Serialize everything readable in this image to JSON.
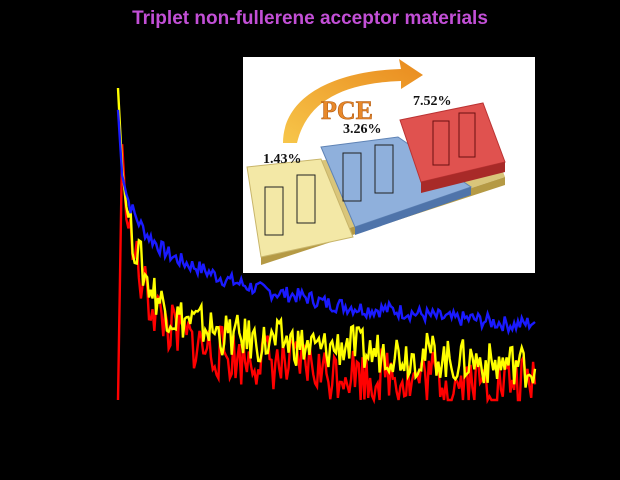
{
  "title": "Triplet non-fullerene acceptor materials",
  "chart_data": {
    "type": "line",
    "title": "Triplet non-fullerene acceptor materials",
    "xlabel": "",
    "ylabel": "",
    "xlim": [
      0,
      100
    ],
    "ylim": [
      0,
      1
    ],
    "grid": false,
    "x": [
      0,
      1,
      2,
      3,
      5,
      7,
      10,
      13,
      16,
      20,
      25,
      30,
      35,
      40,
      45,
      50,
      55,
      60,
      65,
      70,
      75,
      80,
      85,
      90,
      95,
      100
    ],
    "series": [
      {
        "name": "blue",
        "color": "#1a1aff",
        "values": [
          0.93,
          0.72,
          0.66,
          0.62,
          0.57,
          0.53,
          0.49,
          0.46,
          0.44,
          0.42,
          0.39,
          0.37,
          0.35,
          0.34,
          0.33,
          0.31,
          0.3,
          0.29,
          0.29,
          0.28,
          0.27,
          0.26,
          0.26,
          0.25,
          0.24,
          0.25
        ]
      },
      {
        "name": "yellow",
        "color": "#ffff00",
        "values": [
          1.0,
          0.74,
          0.62,
          0.55,
          0.46,
          0.38,
          0.32,
          0.27,
          0.26,
          0.24,
          0.21,
          0.2,
          0.18,
          0.19,
          0.17,
          0.16,
          0.18,
          0.15,
          0.16,
          0.14,
          0.15,
          0.12,
          0.13,
          0.11,
          0.12,
          0.1
        ]
      },
      {
        "name": "red",
        "color": "#ff0000",
        "values": [
          0.0,
          0.82,
          0.58,
          0.52,
          0.4,
          0.33,
          0.27,
          0.22,
          0.2,
          0.17,
          0.15,
          0.13,
          0.14,
          0.1,
          0.12,
          0.08,
          0.1,
          0.07,
          0.09,
          0.06,
          0.08,
          0.05,
          0.07,
          0.04,
          0.06,
          0.05
        ]
      }
    ]
  },
  "inset": {
    "arrow_label": "PCE",
    "steps": [
      {
        "pce": "1.43%",
        "color": "#f3e8a6"
      },
      {
        "pce": "3.26%",
        "color": "#8fb0dc"
      },
      {
        "pce": "7.52%",
        "color": "#e0524f"
      }
    ]
  }
}
